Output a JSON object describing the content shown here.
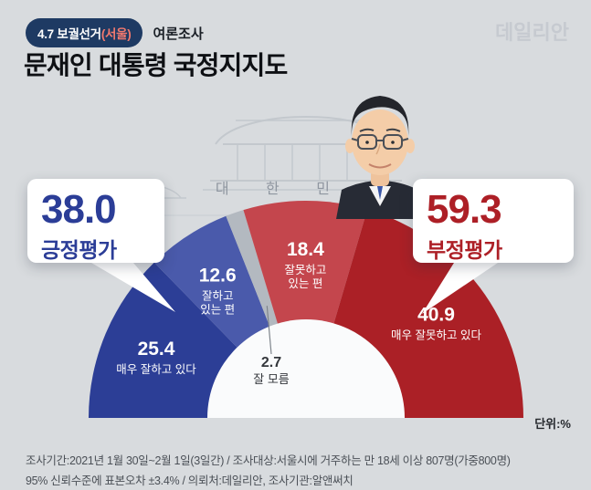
{
  "header": {
    "badge_text": "4.7 보궐선거",
    "badge_highlight": "(서울)",
    "badge_suffix": "여론조사",
    "title": "문재인 대통령 국정지지도",
    "logo": "데일리안"
  },
  "illustration": {
    "caption": "대 한 민 국"
  },
  "callouts": {
    "positive": {
      "value": "38.0",
      "label": "긍정평가",
      "color": "#2b3d97"
    },
    "negative": {
      "value": "59.3",
      "label": "부정평가",
      "color": "#ad1f26"
    }
  },
  "unit_label": "단위:%",
  "footer": {
    "line1": "조사기간:2021년 1월 30일~2월 1일(3일간) / 조사대상:서울시에 거주하는 만 18세 이상 807명(가중800명)",
    "line2": "95% 신뢰수준에 표본오차 ±3.4% / 의뢰처:데일리안, 조사기관:알앤써치"
  },
  "chart_data": {
    "type": "pie",
    "variant": "semicircle_donut",
    "title": "문재인 대통령 국정지지도",
    "unit": "%",
    "legend_position": "none",
    "summary": [
      {
        "name": "긍정평가",
        "value": 38.0,
        "color": "#2b3d97"
      },
      {
        "name": "부정평가",
        "value": 59.3,
        "color": "#ad1f26"
      },
      {
        "name": "잘 모름",
        "value": 2.7,
        "color": "#b3b9c0"
      }
    ],
    "segments": [
      {
        "id": "very-well",
        "name": "매우 잘하고 있다",
        "value": 25.4,
        "color": "#2c3e96",
        "label_lines": [
          "매우 잘하고 있다"
        ]
      },
      {
        "id": "somewhat-well",
        "name": "잘하고 있는 편",
        "value": 12.6,
        "color": "#4a5aab",
        "label_lines": [
          "잘하고",
          "있는 편"
        ]
      },
      {
        "id": "dont-know",
        "name": "잘 모름",
        "value": 2.7,
        "color": "#b3b9c0",
        "label_lines": [
          "잘 모름"
        ],
        "outside": true
      },
      {
        "id": "somewhat-poorly",
        "name": "잘못하고 있는 편",
        "value": 18.4,
        "color": "#c4464d",
        "label_lines": [
          "잘못하고",
          "있는 편"
        ]
      },
      {
        "id": "very-poorly",
        "name": "매우 잘못하고 있다",
        "value": 40.9,
        "color": "#ab2026",
        "label_lines": [
          "매우 잘못하고 있다"
        ]
      }
    ]
  }
}
